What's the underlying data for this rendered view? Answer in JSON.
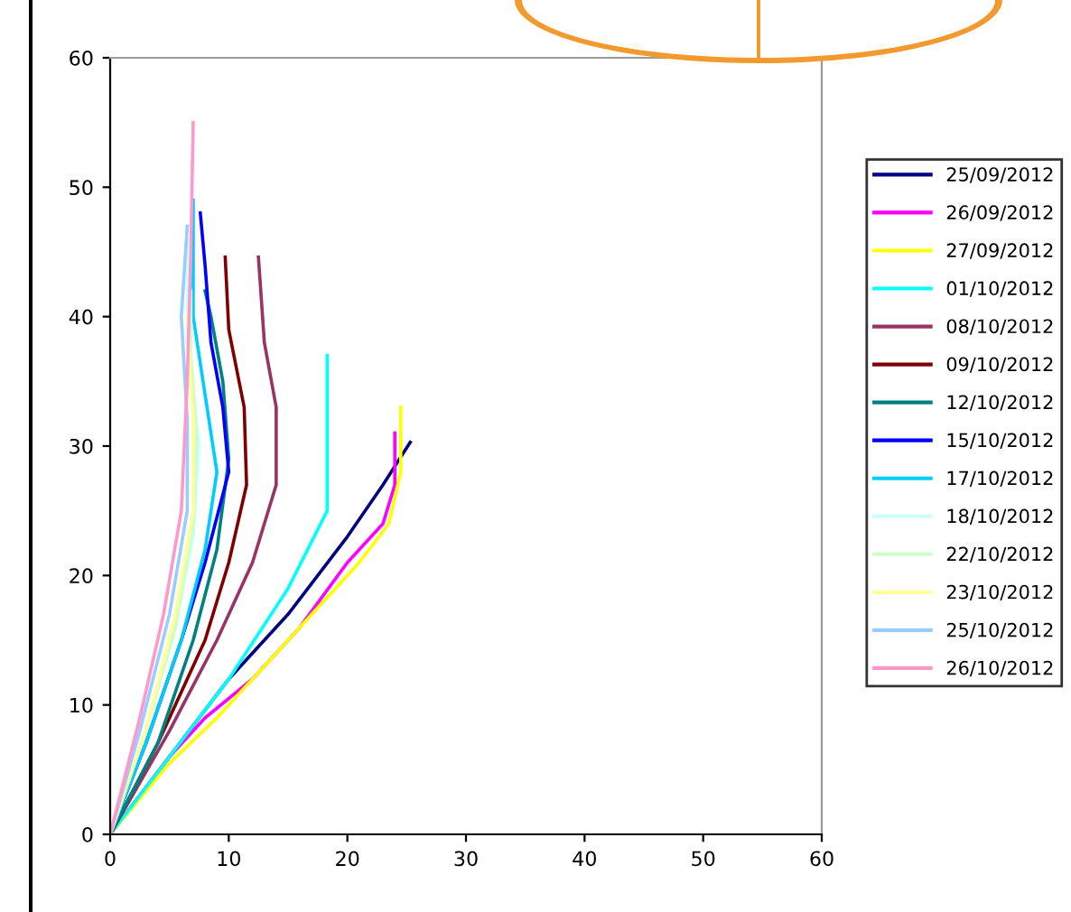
{
  "chart_data": {
    "type": "line",
    "xlim": [
      0,
      60
    ],
    "ylim": [
      0,
      60
    ],
    "xticks": [
      0,
      10,
      20,
      30,
      40,
      50,
      60
    ],
    "yticks": [
      0,
      10,
      20,
      30,
      40,
      50,
      60
    ],
    "grid": false,
    "legend": "right",
    "marker": "none",
    "line_style": "solid",
    "series": [
      {
        "name": "25/09/2012",
        "color": "#000080",
        "x": [
          0,
          5,
          10,
          15,
          20,
          23,
          25.3
        ],
        "values": [
          0,
          6,
          12,
          17,
          23,
          27,
          30.3
        ]
      },
      {
        "name": "26/09/2012",
        "color": "#ff00ff",
        "x": [
          0,
          5,
          8,
          12,
          16,
          20,
          23,
          24,
          24
        ],
        "values": [
          0,
          6,
          9,
          12,
          16,
          21,
          24,
          27,
          31
        ]
      },
      {
        "name": "27/09/2012",
        "color": "#ffff00",
        "x": [
          0,
          5,
          9,
          13,
          17,
          21,
          23.5,
          24.5,
          24.5
        ],
        "values": [
          0,
          5.5,
          9,
          13,
          17,
          21,
          24,
          28,
          33
        ]
      },
      {
        "name": "01/10/2012",
        "color": "#00ffff",
        "x": [
          0,
          5,
          10,
          15,
          18.3,
          18.3
        ],
        "values": [
          0,
          6,
          12,
          19,
          25,
          37
        ]
      },
      {
        "name": "08/10/2012",
        "color": "#993366",
        "x": [
          0,
          5,
          9,
          12,
          14,
          14,
          13,
          12.5
        ],
        "values": [
          0,
          8,
          15,
          21,
          27,
          33,
          38,
          44.6
        ]
      },
      {
        "name": "09/10/2012",
        "color": "#800000",
        "x": [
          0,
          4,
          8,
          10,
          11.5,
          11.3,
          10,
          9.7
        ],
        "values": [
          0,
          7,
          15,
          21,
          27,
          33,
          39,
          44.6
        ]
      },
      {
        "name": "12/10/2012",
        "color": "#008080",
        "x": [
          0,
          4,
          7,
          9,
          10,
          9.5,
          8.5,
          8
        ],
        "values": [
          0,
          7,
          15,
          22,
          29,
          35,
          40,
          42
        ]
      },
      {
        "name": "15/10/2012",
        "color": "#0000ff",
        "x": [
          0,
          3,
          6,
          8,
          10,
          9.5,
          8.5,
          8,
          7.6
        ],
        "values": [
          0,
          7,
          15,
          21,
          28,
          33,
          38,
          44,
          48
        ]
      },
      {
        "name": "17/10/2012",
        "color": "#00ccff",
        "x": [
          0,
          3,
          6,
          8,
          9,
          8,
          7,
          7
        ],
        "values": [
          0,
          7,
          15,
          22,
          28,
          34,
          40,
          49
        ]
      },
      {
        "name": "18/10/2012",
        "color": "#ccffff",
        "x": [
          0,
          3,
          5.5,
          7,
          7.5,
          6.5,
          6.5
        ],
        "values": [
          0,
          8,
          16,
          23,
          30,
          38,
          46
        ]
      },
      {
        "name": "22/10/2012",
        "color": "#ccffcc",
        "x": [
          0,
          3,
          5.5,
          7,
          7.3,
          6.8,
          6.8
        ],
        "values": [
          0,
          8,
          16,
          24,
          31,
          37,
          42
        ]
      },
      {
        "name": "23/10/2012",
        "color": "#ffff99",
        "x": [
          0,
          3,
          5.5,
          7,
          7,
          6.5
        ],
        "values": [
          0,
          8,
          17,
          25,
          32,
          40
        ]
      },
      {
        "name": "25/10/2012",
        "color": "#99ccff",
        "x": [
          0,
          2.5,
          5,
          6.5,
          6.5,
          6,
          6.5
        ],
        "values": [
          0,
          8,
          17,
          25,
          32,
          40,
          47
        ]
      },
      {
        "name": "26/10/2012",
        "color": "#ff99cc",
        "x": [
          0,
          2.5,
          4.5,
          6,
          6.5,
          6.8,
          7
        ],
        "values": [
          0,
          9,
          17,
          25,
          35,
          45,
          55
        ]
      }
    ]
  }
}
